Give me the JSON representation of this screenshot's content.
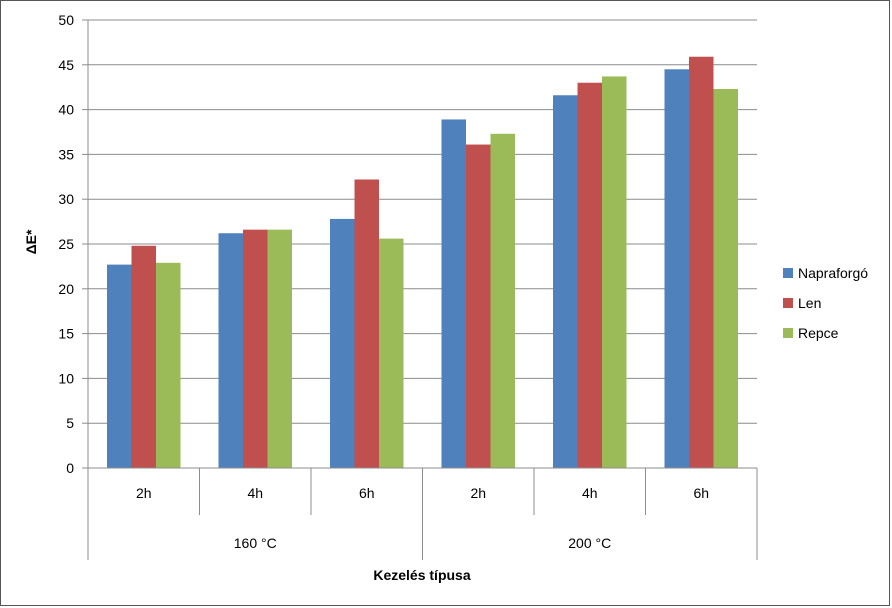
{
  "chart_data": {
    "type": "bar",
    "groups": [
      {
        "label": "160 °C",
        "categories": [
          "2h",
          "4h",
          "6h"
        ]
      },
      {
        "label": "200 °C",
        "categories": [
          "2h",
          "4h",
          "6h"
        ]
      }
    ],
    "categories": [
      "2h",
      "4h",
      "6h",
      "2h",
      "4h",
      "6h"
    ],
    "series": [
      {
        "name": "Napraforgó",
        "color": "#4F81BD",
        "values": [
          22.7,
          26.2,
          27.8,
          38.9,
          41.6,
          44.5
        ]
      },
      {
        "name": "Len",
        "color": "#C0504D",
        "values": [
          24.8,
          26.6,
          32.2,
          36.1,
          43.0,
          45.9
        ]
      },
      {
        "name": "Repce",
        "color": "#9BBB59",
        "values": [
          22.9,
          26.6,
          25.6,
          37.3,
          43.7,
          42.3
        ]
      }
    ],
    "title": "",
    "xlabel": "Kezelés típusa",
    "ylabel": "ΔE*",
    "ylim": [
      0,
      50
    ],
    "yticks": [
      0,
      5,
      10,
      15,
      20,
      25,
      30,
      35,
      40,
      45,
      50
    ],
    "grid": true,
    "legend_position": "right"
  }
}
